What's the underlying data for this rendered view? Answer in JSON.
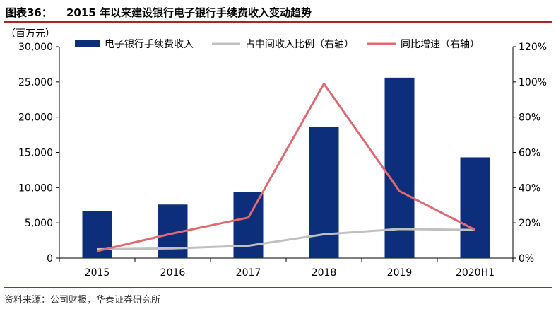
{
  "figure_label": "图表36：",
  "title": "2015 年以来建设银行电子银行手续费收入变动趋势",
  "source": "资料来源：公司财报，华泰证券研究所",
  "chart_data": {
    "type": "bar",
    "categories": [
      "2015",
      "2016",
      "2017",
      "2018",
      "2019",
      "2020H1"
    ],
    "unit_label": "（百万元）",
    "y_left": {
      "min": 0,
      "max": 30000,
      "ticks": [
        0,
        5000,
        10000,
        15000,
        20000,
        25000,
        30000
      ],
      "tick_labels": [
        "0",
        "5,000",
        "10,000",
        "15,000",
        "20,000",
        "25,000",
        "30,000"
      ]
    },
    "y_right": {
      "min": 0,
      "max": 1.2,
      "ticks": [
        0,
        0.2,
        0.4,
        0.6,
        0.8,
        1.0,
        1.2
      ],
      "tick_labels": [
        "0%",
        "20%",
        "40%",
        "60%",
        "80%",
        "100%",
        "120%"
      ]
    },
    "grid": false,
    "legend_position": "top",
    "series": [
      {
        "name": "电子银行手续费收入",
        "kind": "bar",
        "axis": "left",
        "color": "#0d2e7a",
        "values": [
          6700,
          7600,
          9400,
          18600,
          25600,
          14300
        ]
      },
      {
        "name": "占中间收入比例（右轴）",
        "kind": "line",
        "axis": "right",
        "color": "#c0c0c0",
        "values": [
          0.05,
          0.055,
          0.07,
          0.135,
          0.165,
          0.16
        ]
      },
      {
        "name": "同比增速（右轴）",
        "kind": "line",
        "axis": "right",
        "color": "#e06a72",
        "values": [
          0.04,
          0.14,
          0.23,
          0.99,
          0.38,
          0.16
        ]
      }
    ]
  }
}
